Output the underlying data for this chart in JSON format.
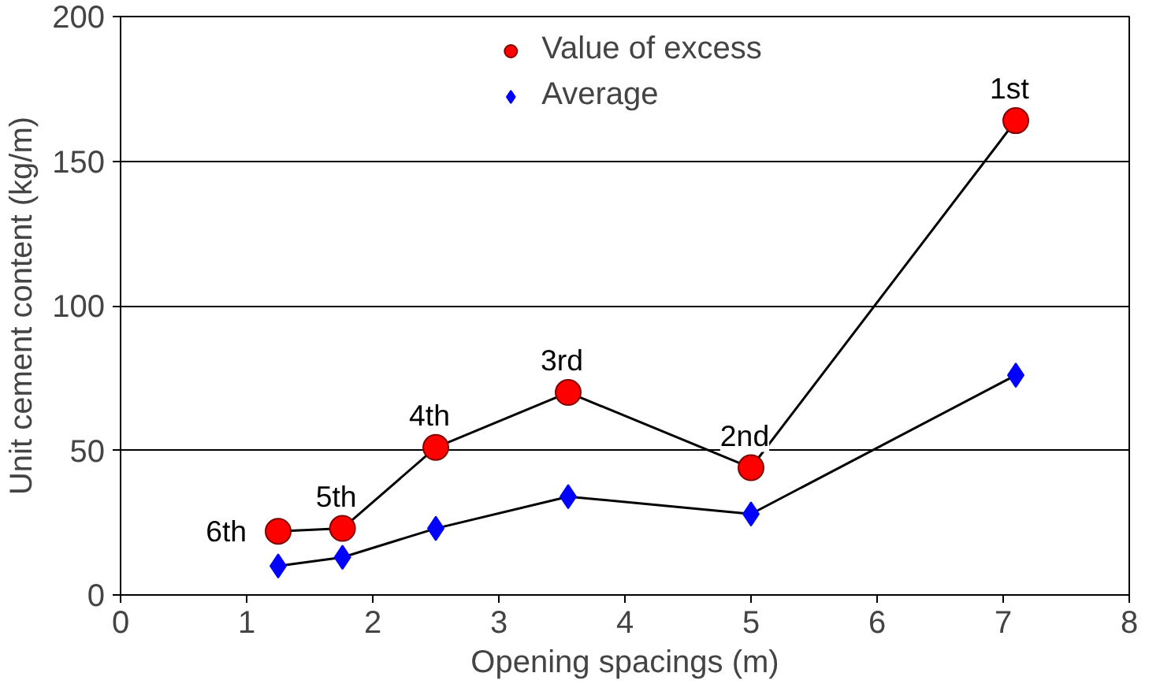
{
  "chart_data": {
    "type": "scatter",
    "xlabel": "Opening spacings (m)",
    "ylabel": "Unit cement content (kg/m)",
    "xlim": [
      0,
      8
    ],
    "xticks": [
      0,
      1,
      2,
      3,
      4,
      5,
      6,
      7,
      8
    ],
    "ylim": [
      0,
      200
    ],
    "yticks": [
      0,
      50,
      100,
      150,
      200
    ],
    "x": [
      1.25,
      1.76,
      2.5,
      3.55,
      5.0,
      7.1
    ],
    "series": [
      {
        "name": "Value of excess",
        "color": "#ff0000",
        "marker": "circle",
        "values": [
          22,
          23,
          51,
          70,
          44,
          164
        ]
      },
      {
        "name": "Average",
        "color": "#0000ff",
        "marker": "diamond",
        "values": [
          10,
          13,
          23,
          34,
          28,
          76
        ]
      }
    ],
    "annotations": [
      {
        "text": "6th",
        "x": 1.25,
        "y": 22
      },
      {
        "text": "5th",
        "x": 1.76,
        "y": 23
      },
      {
        "text": "4th",
        "x": 2.5,
        "y": 51
      },
      {
        "text": "3rd",
        "x": 3.55,
        "y": 70
      },
      {
        "text": "2nd",
        "x": 5.0,
        "y": 44
      },
      {
        "text": "1st",
        "x": 7.1,
        "y": 164
      }
    ],
    "grid": "y",
    "legend": "top"
  }
}
